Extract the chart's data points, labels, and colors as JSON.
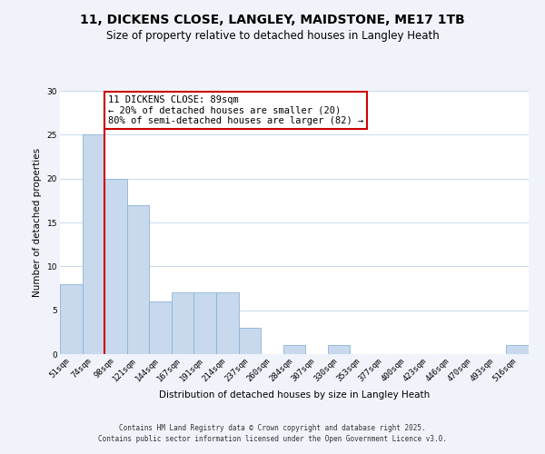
{
  "title": "11, DICKENS CLOSE, LANGLEY, MAIDSTONE, ME17 1TB",
  "subtitle": "Size of property relative to detached houses in Langley Heath",
  "xlabel": "Distribution of detached houses by size in Langley Heath",
  "ylabel": "Number of detached properties",
  "bin_labels": [
    "51sqm",
    "74sqm",
    "98sqm",
    "121sqm",
    "144sqm",
    "167sqm",
    "191sqm",
    "214sqm",
    "237sqm",
    "260sqm",
    "284sqm",
    "307sqm",
    "330sqm",
    "353sqm",
    "377sqm",
    "400sqm",
    "423sqm",
    "446sqm",
    "470sqm",
    "493sqm",
    "516sqm"
  ],
  "bar_values": [
    8,
    25,
    20,
    17,
    6,
    7,
    7,
    7,
    3,
    0,
    1,
    0,
    1,
    0,
    0,
    0,
    0,
    0,
    0,
    0,
    1
  ],
  "bar_color": "#c8d9ed",
  "bar_edge_color": "#8ab4d4",
  "vline_color": "#cc0000",
  "annotation_text": "11 DICKENS CLOSE: 89sqm\n← 20% of detached houses are smaller (20)\n80% of semi-detached houses are larger (82) →",
  "annotation_box_color": "#ffffff",
  "annotation_box_edge": "#cc0000",
  "ylim": [
    0,
    30
  ],
  "yticks": [
    0,
    5,
    10,
    15,
    20,
    25,
    30
  ],
  "grid_color": "#c8d9ed",
  "plot_bg_color": "#ffffff",
  "fig_bg_color": "#f0f4fa",
  "footer_text": "Contains HM Land Registry data © Crown copyright and database right 2025.\nContains public sector information licensed under the Open Government Licence v3.0.",
  "title_fontsize": 10,
  "subtitle_fontsize": 8.5,
  "axis_label_fontsize": 7.5,
  "tick_fontsize": 6.5,
  "annotation_fontsize": 7.5,
  "footer_fontsize": 5.5
}
